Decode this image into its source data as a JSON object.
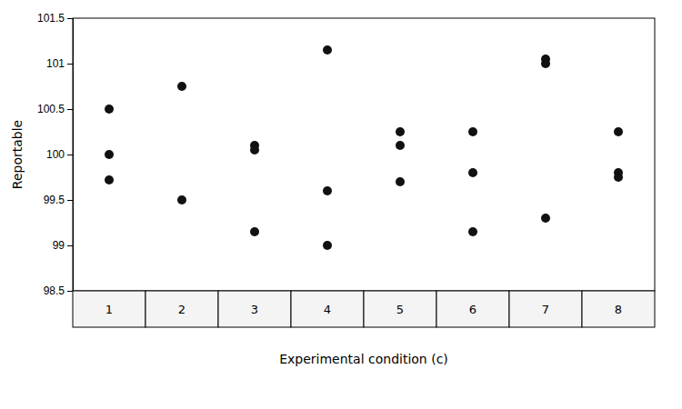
{
  "chart_data": {
    "type": "scatter",
    "xlabel": "Experimental condition (c)",
    "ylabel": "Reportable",
    "x": [
      1,
      1,
      1,
      2,
      2,
      3,
      3,
      3,
      4,
      4,
      4,
      5,
      5,
      5,
      6,
      6,
      6,
      7,
      7,
      7,
      8,
      8,
      8
    ],
    "values": [
      100.5,
      100.0,
      99.72,
      100.75,
      99.5,
      100.1,
      100.05,
      99.15,
      101.15,
      99.6,
      99.0,
      100.25,
      100.1,
      99.7,
      100.25,
      99.8,
      99.15,
      101.05,
      101.0,
      99.3,
      100.25,
      99.8,
      99.75
    ],
    "color": "#111111",
    "xlim": [
      0.5,
      8.5
    ],
    "xticks": [
      1,
      2,
      3,
      4,
      5,
      6,
      7,
      8
    ],
    "ylim": [
      98.5,
      101.5
    ],
    "yticks": [
      98.5,
      99,
      99.5,
      100,
      100.5,
      101,
      101.5
    ],
    "grid": false
  }
}
